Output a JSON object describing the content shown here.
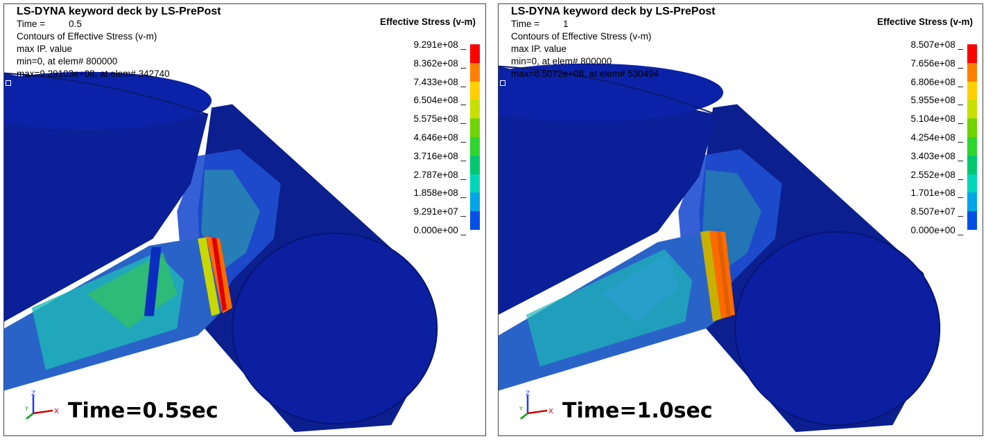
{
  "colors": {
    "scale": [
      "#0000ff",
      "#0050e6",
      "#00a6e6",
      "#00d6b8",
      "#00c870",
      "#2ed62e",
      "#6fd400",
      "#c8e000",
      "#ffd000",
      "#ff8000",
      "#ff0000"
    ],
    "deep_blue": "#0a2a9c",
    "mid_blue": "#123aa8"
  },
  "panels": [
    {
      "header": {
        "title": "LS-DYNA keyword deck by LS-PrePost",
        "time_label": "Time =",
        "time_value": "0.5",
        "contour": "Contours of Effective Stress (v-m)",
        "ip_value": "max IP. value",
        "min_text": "min=0, at elem# 800000",
        "max_text": "max=9.29103e+08, at elem# 342740"
      },
      "legend": {
        "title": "Effective Stress (v-m)",
        "ticks": [
          "9.291e+08",
          "8.362e+08",
          "7.433e+08",
          "6.504e+08",
          "5.575e+08",
          "4.646e+08",
          "3.716e+08",
          "2.787e+08",
          "1.858e+08",
          "9.291e+07",
          "0.000e+00"
        ]
      },
      "caption": "Time=0.5sec",
      "axes": {
        "x": "X",
        "y": "Y",
        "z": "Z"
      }
    },
    {
      "header": {
        "title": "LS-DYNA keyword deck by LS-PrePost",
        "time_label": "Time =",
        "time_value": "1",
        "contour": "Contours of Effective Stress (v-m)",
        "ip_value": "max IP. value",
        "min_text": "min=0, at elem# 800000",
        "max_text": "max=8.5072e+08, at elem# 530494"
      },
      "legend": {
        "title": "Effective Stress (v-m)",
        "ticks": [
          "8.507e+08",
          "7.656e+08",
          "6.806e+08",
          "5.955e+08",
          "5.104e+08",
          "4.254e+08",
          "3.403e+08",
          "2.552e+08",
          "1.701e+08",
          "8.507e+07",
          "0.000e+00"
        ]
      },
      "caption": "Time=1.0sec",
      "axes": {
        "x": "X",
        "y": "Y",
        "z": "Z"
      }
    }
  ]
}
